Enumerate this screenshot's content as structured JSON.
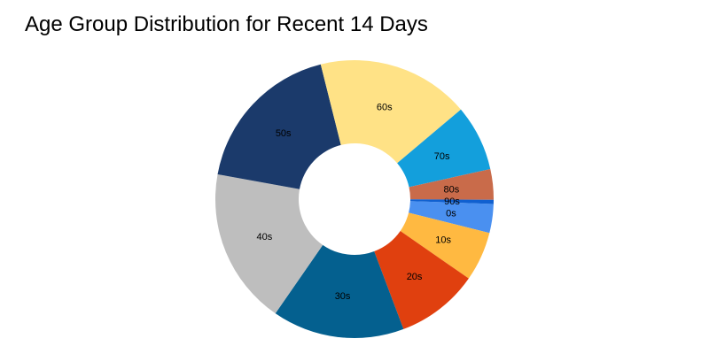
{
  "chart_data": {
    "type": "pie",
    "title": "Age Group Distribution for Recent 14 Days",
    "donut": true,
    "legend": "none",
    "categories": [
      "0s",
      "10s",
      "20s",
      "30s",
      "40s",
      "50s",
      "60s",
      "70s",
      "80s",
      "90s"
    ],
    "values": [
      3.5,
      6.0,
      10.0,
      16.0,
      19.0,
      19.0,
      18.5,
      8.0,
      3.7,
      0.5
    ],
    "colors": [
      "#4a90f0",
      "#ffb941",
      "#e0400f",
      "#04608f",
      "#bebebe",
      "#1b3a6b",
      "#ffe286",
      "#139fdc",
      "#c96b4a",
      "#1060d0"
    ]
  }
}
